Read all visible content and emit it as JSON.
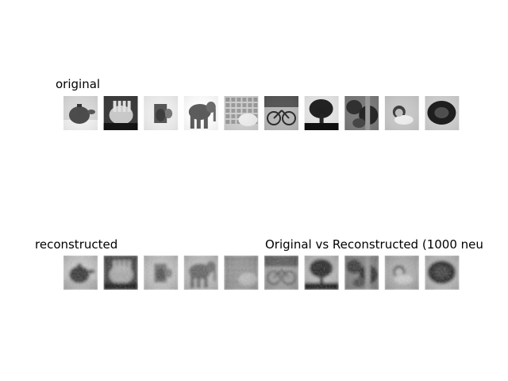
{
  "chart_data": {
    "type": "image-grid",
    "title": "Original vs Reconstructed (1000 neu",
    "rows": [
      {
        "label": "original",
        "images": [
          {
            "subject": "teapot",
            "kind": "photo"
          },
          {
            "subject": "hand",
            "kind": "photo"
          },
          {
            "subject": "mug",
            "kind": "photo"
          },
          {
            "subject": "elephant",
            "kind": "photo"
          },
          {
            "subject": "keyboard",
            "kind": "photo"
          },
          {
            "subject": "bicycle",
            "kind": "photo"
          },
          {
            "subject": "tree",
            "kind": "photo"
          },
          {
            "subject": "foliage",
            "kind": "photo"
          },
          {
            "subject": "child",
            "kind": "photo"
          },
          {
            "subject": "dark-object",
            "kind": "photo"
          }
        ]
      },
      {
        "label": "reconstructed",
        "images": [
          {
            "subject": "teapot",
            "kind": "blur"
          },
          {
            "subject": "hand",
            "kind": "blur"
          },
          {
            "subject": "mug",
            "kind": "blur"
          },
          {
            "subject": "elephant",
            "kind": "blur"
          },
          {
            "subject": "keyboard",
            "kind": "blur"
          },
          {
            "subject": "bicycle",
            "kind": "blur"
          },
          {
            "subject": "tree",
            "kind": "blur"
          },
          {
            "subject": "foliage",
            "kind": "blur"
          },
          {
            "subject": "child",
            "kind": "blur"
          },
          {
            "subject": "dark-object",
            "kind": "blur"
          }
        ]
      }
    ],
    "colormap": "gray",
    "axes_visible": false
  }
}
